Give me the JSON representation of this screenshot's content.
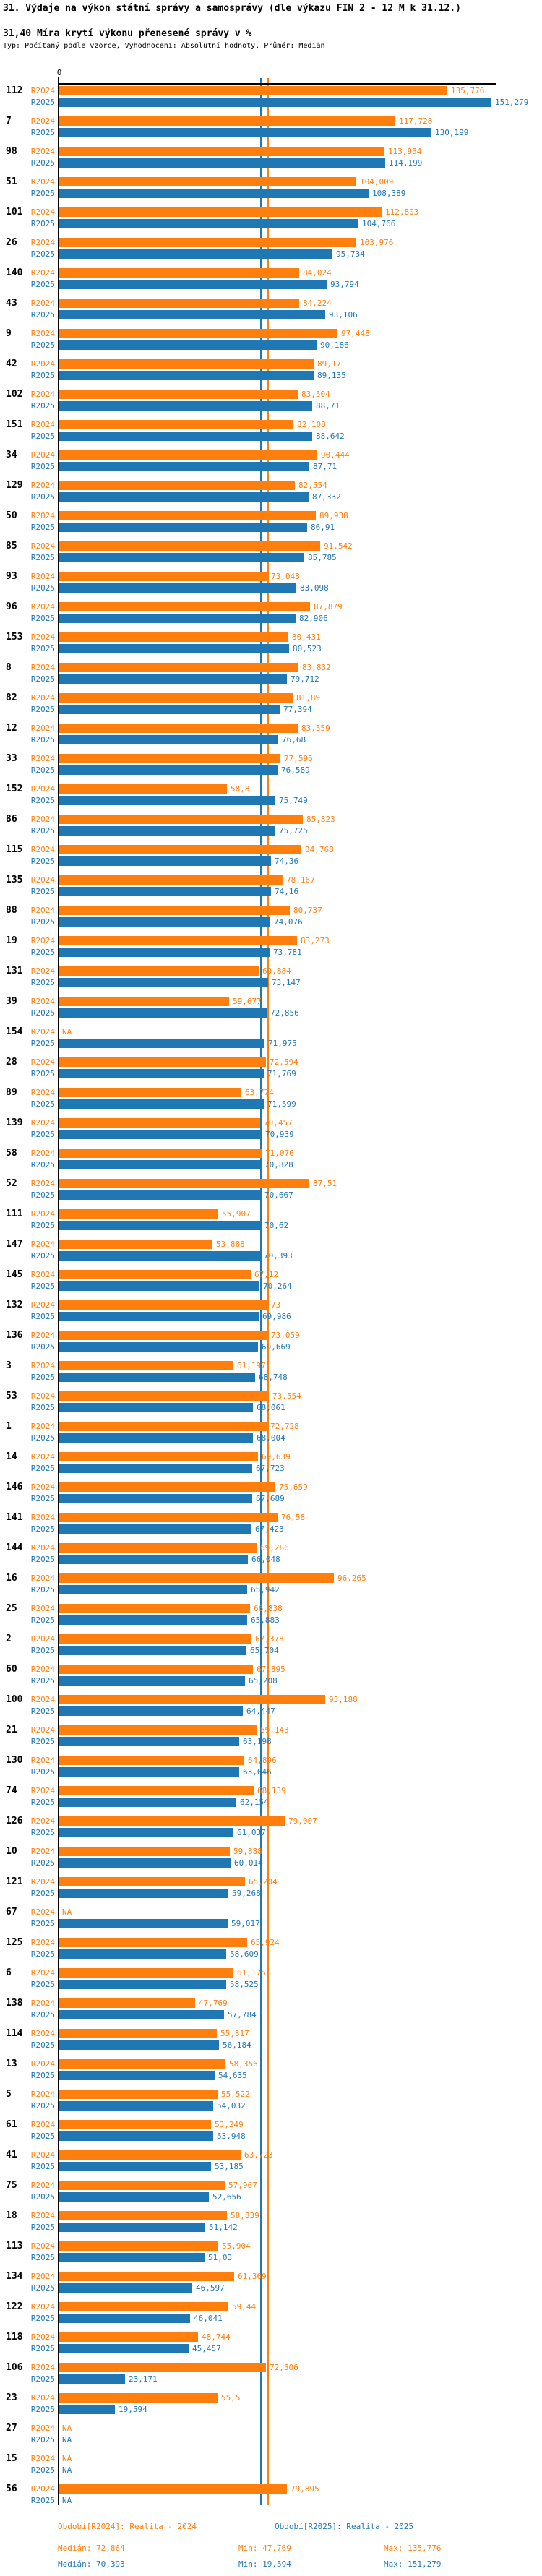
{
  "header": {
    "title": "31. Výdaje na výkon státní správy a samosprávy (dle výkazu FIN 2 - 12 M k 31.12.)",
    "subtitle": "31,40 Míra krytí výkonu přenesené správy v %",
    "meta": "Typ: Počítaný podle vzorce, Vyhodnocení: Absolutní hodnoty, Průměr: Medián"
  },
  "chart_data": {
    "type": "bar",
    "orientation": "horizontal",
    "xlabel": "",
    "ylabel": "",
    "axis": {
      "zero_label": "0",
      "x_min": 0,
      "x_max": 153,
      "grid": false,
      "units": "%"
    },
    "series_labels": [
      "R2024",
      "R2025"
    ],
    "colors": {
      "r2024": "#ff7f0e",
      "r2025": "#1f77b4",
      "axis": "#000000"
    },
    "legend_position": "bottom",
    "medians": {
      "r2024": 72.864,
      "r2025": 70.393
    },
    "na_text": "NA",
    "groups": [
      {
        "id": "112",
        "r2024": "135,776",
        "r2025": "151,279"
      },
      {
        "id": "7",
        "r2024": "117,728",
        "r2025": "130,199"
      },
      {
        "id": "98",
        "r2024": "113,954",
        "r2025": "114,199"
      },
      {
        "id": "51",
        "r2024": "104,009",
        "r2025": "108,389"
      },
      {
        "id": "101",
        "r2024": "112,803",
        "r2025": "104,766"
      },
      {
        "id": "26",
        "r2024": "103,976",
        "r2025": "95,734"
      },
      {
        "id": "140",
        "r2024": "84,024",
        "r2025": "93,794"
      },
      {
        "id": "43",
        "r2024": "84,224",
        "r2025": "93,106"
      },
      {
        "id": "9",
        "r2024": "97,448",
        "r2025": "90,186"
      },
      {
        "id": "42",
        "r2024": "89,17",
        "r2025": "89,135"
      },
      {
        "id": "102",
        "r2024": "83,504",
        "r2025": "88,71"
      },
      {
        "id": "151",
        "r2024": "82,108",
        "r2025": "88,642"
      },
      {
        "id": "34",
        "r2024": "90,444",
        "r2025": "87,71"
      },
      {
        "id": "129",
        "r2024": "82,554",
        "r2025": "87,332"
      },
      {
        "id": "50",
        "r2024": "89,938",
        "r2025": "86,91"
      },
      {
        "id": "85",
        "r2024": "91,542",
        "r2025": "85,785"
      },
      {
        "id": "93",
        "r2024": "73,048",
        "r2025": "83,098"
      },
      {
        "id": "96",
        "r2024": "87,879",
        "r2025": "82,906"
      },
      {
        "id": "153",
        "r2024": "80,431",
        "r2025": "80,523"
      },
      {
        "id": "8",
        "r2024": "83,832",
        "r2025": "79,712"
      },
      {
        "id": "82",
        "r2024": "81,89",
        "r2025": "77,394"
      },
      {
        "id": "12",
        "r2024": "83,559",
        "r2025": "76,68"
      },
      {
        "id": "33",
        "r2024": "77,595",
        "r2025": "76,589"
      },
      {
        "id": "152",
        "r2024": "58,8",
        "r2025": "75,749"
      },
      {
        "id": "86",
        "r2024": "85,323",
        "r2025": "75,725"
      },
      {
        "id": "115",
        "r2024": "84,768",
        "r2025": "74,36"
      },
      {
        "id": "135",
        "r2024": "78,167",
        "r2025": "74,16"
      },
      {
        "id": "88",
        "r2024": "80,737",
        "r2025": "74,076"
      },
      {
        "id": "19",
        "r2024": "83,273",
        "r2025": "73,781"
      },
      {
        "id": "131",
        "r2024": "69,884",
        "r2025": "73,147"
      },
      {
        "id": "39",
        "r2024": "59,677",
        "r2025": "72,856"
      },
      {
        "id": "154",
        "r2024": null,
        "r2025": "71,975"
      },
      {
        "id": "28",
        "r2024": "72,594",
        "r2025": "71,769"
      },
      {
        "id": "89",
        "r2024": "63,774",
        "r2025": "71,599"
      },
      {
        "id": "139",
        "r2024": "70,457",
        "r2025": "70,939"
      },
      {
        "id": "58",
        "r2024": "71,076",
        "r2025": "70,828"
      },
      {
        "id": "52",
        "r2024": "87,51",
        "r2025": "70,667"
      },
      {
        "id": "111",
        "r2024": "55,907",
        "r2025": "70,62"
      },
      {
        "id": "147",
        "r2024": "53,888",
        "r2025": "70,393"
      },
      {
        "id": "145",
        "r2024": "67,12",
        "r2025": "70,264"
      },
      {
        "id": "132",
        "r2024": "73",
        "r2025": "69,986"
      },
      {
        "id": "136",
        "r2024": "73,059",
        "r2025": "69,669"
      },
      {
        "id": "3",
        "r2024": "61,197",
        "r2025": "68,748"
      },
      {
        "id": "53",
        "r2024": "73,554",
        "r2025": "68,061"
      },
      {
        "id": "1",
        "r2024": "72,728",
        "r2025": "68,004"
      },
      {
        "id": "14",
        "r2024": "69,639",
        "r2025": "67,723"
      },
      {
        "id": "146",
        "r2024": "75,659",
        "r2025": "67,689"
      },
      {
        "id": "141",
        "r2024": "76,58",
        "r2025": "67,423"
      },
      {
        "id": "144",
        "r2024": "69,286",
        "r2025": "66,048"
      },
      {
        "id": "16",
        "r2024": "96,265",
        "r2025": "65,942"
      },
      {
        "id": "25",
        "r2024": "66,838",
        "r2025": "65,883"
      },
      {
        "id": "2",
        "r2024": "67,378",
        "r2025": "65,704"
      },
      {
        "id": "60",
        "r2024": "67,895",
        "r2025": "65,208"
      },
      {
        "id": "100",
        "r2024": "93,188",
        "r2025": "64,447"
      },
      {
        "id": "21",
        "r2024": "69,143",
        "r2025": "63,198"
      },
      {
        "id": "130",
        "r2024": "64,896",
        "r2025": "63,046"
      },
      {
        "id": "74",
        "r2024": "68,139",
        "r2025": "62,154"
      },
      {
        "id": "126",
        "r2024": "79,007",
        "r2025": "61,037"
      },
      {
        "id": "10",
        "r2024": "59,888",
        "r2025": "60,014"
      },
      {
        "id": "121",
        "r2024": "65,204",
        "r2025": "59,268"
      },
      {
        "id": "67",
        "r2024": null,
        "r2025": "59,017"
      },
      {
        "id": "125",
        "r2024": "65,924",
        "r2025": "58,609"
      },
      {
        "id": "6",
        "r2024": "61,175",
        "r2025": "58,525"
      },
      {
        "id": "138",
        "r2024": "47,769",
        "r2025": "57,784"
      },
      {
        "id": "114",
        "r2024": "55,317",
        "r2025": "56,184"
      },
      {
        "id": "13",
        "r2024": "58,356",
        "r2025": "54,635"
      },
      {
        "id": "5",
        "r2024": "55,522",
        "r2025": "54,032"
      },
      {
        "id": "61",
        "r2024": "53,249",
        "r2025": "53,948"
      },
      {
        "id": "41",
        "r2024": "63,723",
        "r2025": "53,185"
      },
      {
        "id": "75",
        "r2024": "57,967",
        "r2025": "52,656"
      },
      {
        "id": "18",
        "r2024": "58,839",
        "r2025": "51,142"
      },
      {
        "id": "113",
        "r2024": "55,904",
        "r2025": "51,03"
      },
      {
        "id": "134",
        "r2024": "61,369",
        "r2025": "46,597"
      },
      {
        "id": "122",
        "r2024": "59,44",
        "r2025": "46,041"
      },
      {
        "id": "118",
        "r2024": "48,744",
        "r2025": "45,457"
      },
      {
        "id": "106",
        "r2024": "72,506",
        "r2025": "23,171"
      },
      {
        "id": "23",
        "r2024": "55,5",
        "r2025": "19,594"
      },
      {
        "id": "27",
        "r2024": null,
        "r2025": null
      },
      {
        "id": "15",
        "r2024": null,
        "r2025": null
      },
      {
        "id": "56",
        "r2024": "79,895",
        "r2025": null
      }
    ],
    "footer": {
      "period_r2024": "Období[R2024]: Realita - 2024",
      "period_r2025": "Období[R2025]: Realita - 2025",
      "stats_r2024": {
        "median": "Medián: 72,864",
        "min": "Min: 47,769",
        "max": "Max: 135,776"
      },
      "stats_r2025": {
        "median": "Medián: 70,393",
        "min": "Min: 19,594",
        "max": "Max: 151,279"
      }
    }
  }
}
